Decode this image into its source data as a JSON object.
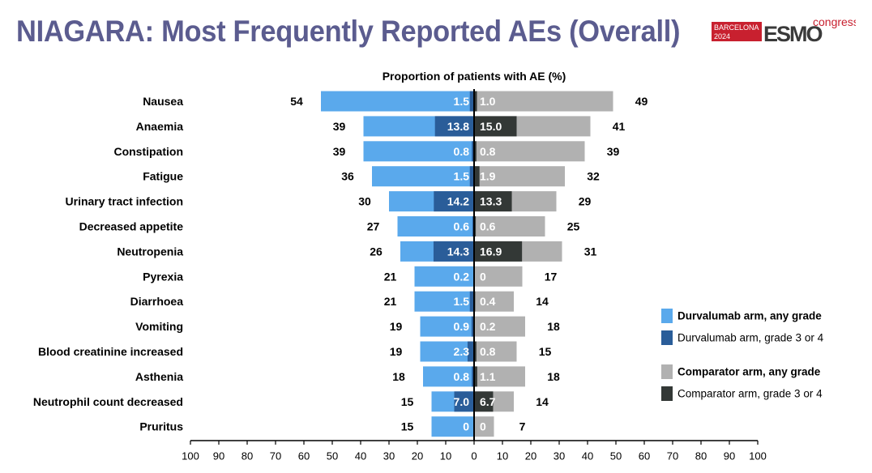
{
  "slide": {
    "title": "NIAGARA: Most Frequently Reported AEs (Overall)"
  },
  "logo": {
    "city": "BARCELONA",
    "year": "2024",
    "brand": "ESMO",
    "suffix": "congress",
    "colors": {
      "red": "#c8202f",
      "dark": "#3a3a3a",
      "green": "#2d8a4e"
    }
  },
  "colors": {
    "title": "#5b5c8f",
    "durva_any": "#5aa9ec",
    "durva_g34": "#2a5d99",
    "comp_any": "#b1b1b1",
    "comp_g34": "#333836",
    "axis": "#000000"
  },
  "chart_data": {
    "type": "bar",
    "orientation": "horizontal-butterfly",
    "title": "Proportion of patients with AE (%)",
    "categories": [
      "Nausea",
      "Anaemia",
      "Constipation",
      "Fatigue",
      "Urinary tract infection",
      "Decreased appetite",
      "Neutropenia",
      "Pyrexia",
      "Diarrhoea",
      "Vomiting",
      "Blood creatinine increased",
      "Asthenia",
      "Neutrophil count decreased",
      "Pruritus"
    ],
    "series": [
      {
        "name": "Durvalumab arm, any grade",
        "side": "left",
        "values": [
          54,
          39,
          39,
          36,
          30,
          27,
          26,
          21,
          21,
          19,
          19,
          18,
          15,
          15
        ],
        "labels": [
          "54",
          "39",
          "39",
          "36",
          "30",
          "27",
          "26",
          "21",
          "21",
          "19",
          "19",
          "18",
          "15",
          "15"
        ]
      },
      {
        "name": "Durvalumab arm, grade 3 or 4",
        "side": "left",
        "values": [
          1.5,
          13.8,
          0.8,
          1.5,
          14.2,
          0.6,
          14.3,
          0.2,
          1.5,
          0.9,
          2.3,
          0.8,
          7.0,
          0
        ],
        "labels": [
          "1.5",
          "13.8",
          "0.8",
          "1.5",
          "14.2",
          "0.6",
          "14.3",
          "0.2",
          "1.5",
          "0.9",
          "2.3",
          "0.8",
          "7.0",
          "0"
        ]
      },
      {
        "name": "Comparator arm, any grade",
        "side": "right",
        "values": [
          49,
          41,
          39,
          32,
          29,
          25,
          31,
          17,
          14,
          18,
          15,
          18,
          14,
          7
        ],
        "labels": [
          "49",
          "41",
          "39",
          "32",
          "29",
          "25",
          "31",
          "17",
          "14",
          "18",
          "15",
          "18",
          "14",
          "7"
        ]
      },
      {
        "name": "Comparator arm, grade 3 or 4",
        "side": "right",
        "values": [
          1.0,
          15.0,
          0.8,
          1.9,
          13.3,
          0.6,
          16.9,
          0,
          0.4,
          0.2,
          0.8,
          1.1,
          6.7,
          0
        ],
        "labels": [
          "1.0",
          "15.0",
          "0.8",
          "1.9",
          "13.3",
          "0.6",
          "16.9",
          "0",
          "0.4",
          "0.2",
          "0.8",
          "1.1",
          "6.7",
          "0"
        ]
      }
    ],
    "xaxis": {
      "range": [
        -100,
        100
      ],
      "ticks": [
        -100,
        -90,
        -80,
        -70,
        -60,
        -50,
        -40,
        -30,
        -20,
        -10,
        0,
        10,
        20,
        30,
        40,
        50,
        60,
        70,
        80,
        90,
        100
      ],
      "tick_labels": [
        "100",
        "90",
        "80",
        "70",
        "60",
        "50",
        "40",
        "30",
        "20",
        "10",
        "0",
        "10",
        "20",
        "30",
        "40",
        "50",
        "60",
        "70",
        "80",
        "90",
        "100"
      ]
    },
    "grid": false,
    "legend_position": "right"
  }
}
